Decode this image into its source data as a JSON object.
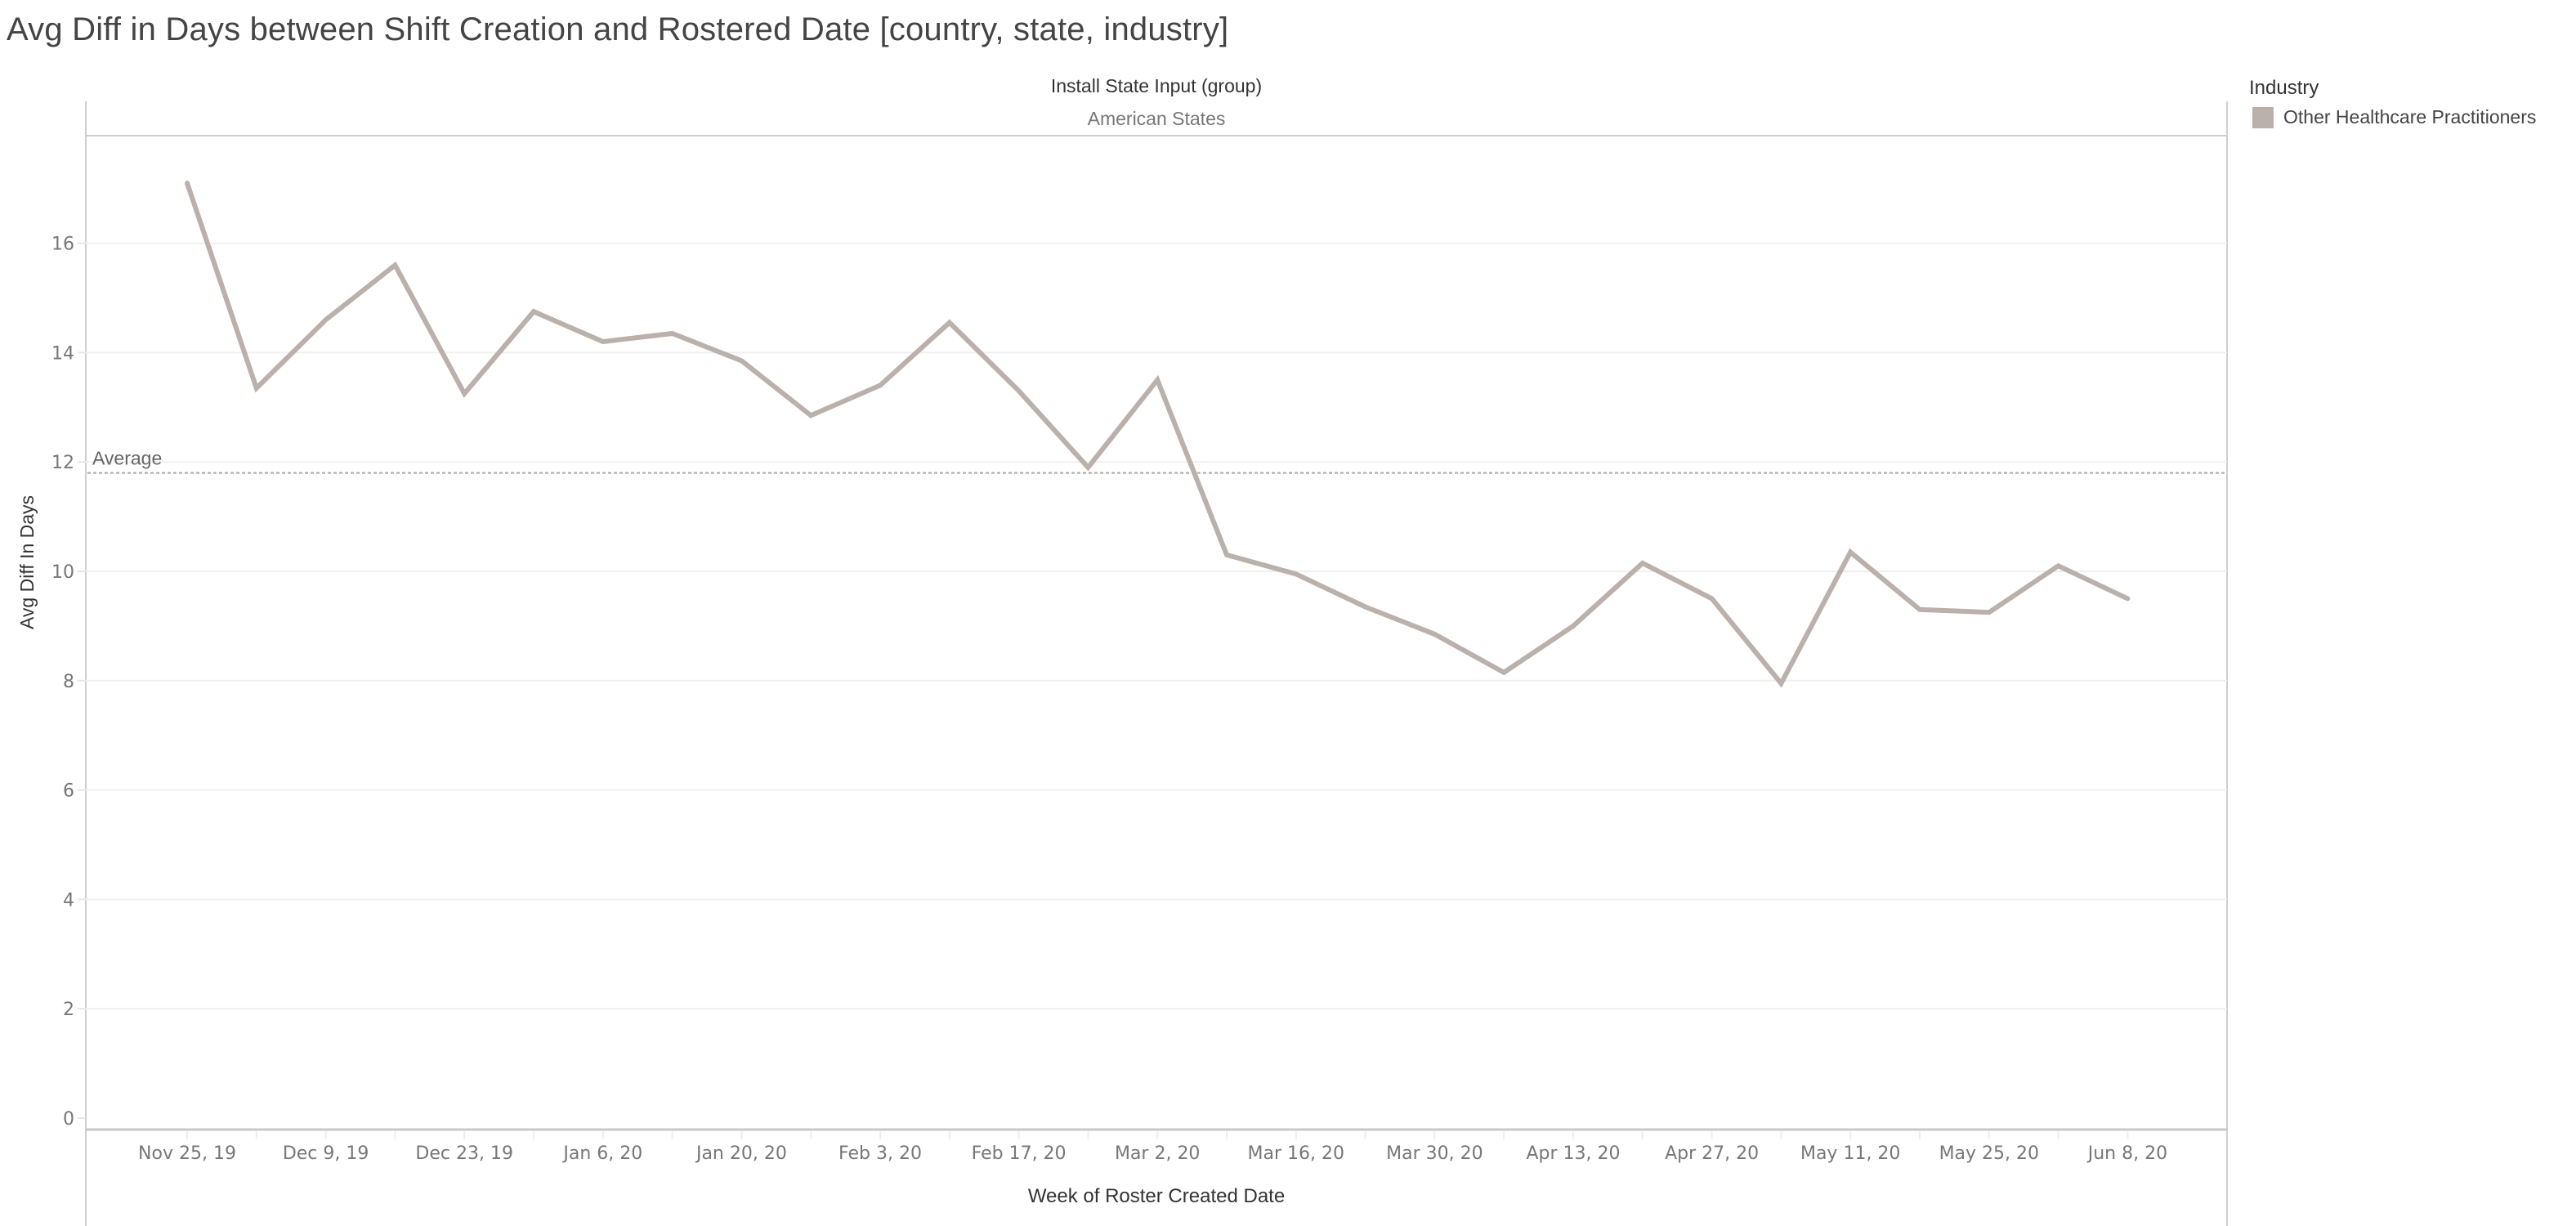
{
  "title": "Avg Diff in Days between Shift Creation and Rostered Date [country, state, industry]",
  "facet": {
    "header": "Install State Input (group)",
    "value": "American States"
  },
  "legend": {
    "title": "Industry",
    "items": [
      {
        "label": "Other Healthcare Practitioners",
        "color": "#bab0ac"
      }
    ]
  },
  "reference_line": {
    "label": "Average",
    "value": 11.8
  },
  "chart_data": {
    "type": "line",
    "title": "Avg Diff in Days between Shift Creation and Rostered Date [country, state, industry]",
    "xlabel": "Week of Roster Created Date",
    "ylabel": "Avg Diff In Days",
    "ylim": [
      0,
      17.5
    ],
    "yticks": [
      0,
      2,
      4,
      6,
      8,
      10,
      12,
      14,
      16
    ],
    "xtick_labels": [
      "Nov 25, 19",
      "Dec 9, 19",
      "Dec 23, 19",
      "Jan 6, 20",
      "Jan 20, 20",
      "Feb 3, 20",
      "Feb 17, 20",
      "Mar 2, 20",
      "Mar 16, 20",
      "Mar 30, 20",
      "Apr 13, 20",
      "Apr 27, 20",
      "May 11, 20",
      "May 25, 20",
      "Jun 8, 20"
    ],
    "grid": true,
    "legend_position": "right",
    "x": [
      "Nov 25, 19",
      "Dec 2, 19",
      "Dec 9, 19",
      "Dec 16, 19",
      "Dec 23, 19",
      "Dec 30, 19",
      "Jan 6, 20",
      "Jan 13, 20",
      "Jan 20, 20",
      "Jan 27, 20",
      "Feb 3, 20",
      "Feb 10, 20",
      "Feb 17, 20",
      "Feb 24, 20",
      "Mar 2, 20",
      "Mar 9, 20",
      "Mar 16, 20",
      "Mar 23, 20",
      "Mar 30, 20",
      "Apr 6, 20",
      "Apr 13, 20",
      "Apr 20, 20",
      "Apr 27, 20",
      "May 4, 20",
      "May 11, 20",
      "May 18, 20",
      "May 25, 20",
      "Jun 1, 20",
      "Jun 8, 20"
    ],
    "series": [
      {
        "name": "Other Healthcare Practitioners",
        "color": "#bab0ac",
        "values": [
          17.1,
          13.35,
          14.6,
          15.6,
          13.25,
          14.75,
          14.2,
          14.35,
          13.85,
          12.85,
          13.4,
          14.55,
          13.3,
          11.9,
          13.5,
          10.3,
          9.95,
          9.35,
          8.85,
          8.15,
          9.0,
          10.15,
          9.5,
          7.95,
          10.35,
          9.3,
          9.25,
          10.1,
          9.5
        ]
      }
    ],
    "annotations": [
      {
        "type": "reference_line",
        "label": "Average",
        "value": 11.8
      }
    ]
  }
}
